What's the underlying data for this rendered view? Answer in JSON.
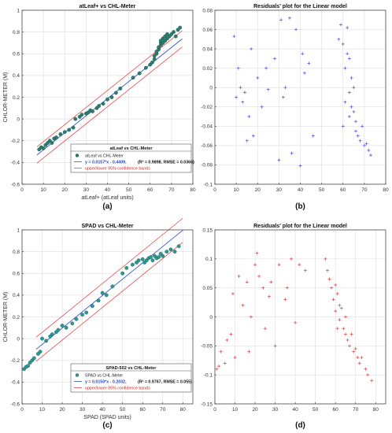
{
  "panels": [
    {
      "id": "a",
      "caption": "(a)",
      "chart_data": {
        "type": "scatter",
        "title": "atLeaf+ vs CHL-Meter",
        "xlabel": "atLeaf+ (atLeaf units)",
        "ylabel": "CHLOR-METER (M)",
        "xlim": [
          0,
          80
        ],
        "ylim": [
          -0.6,
          1.0
        ],
        "xticks": [
          0,
          10,
          20,
          30,
          40,
          50,
          60,
          70,
          80
        ],
        "yticks": [
          -0.6,
          -0.4,
          -0.2,
          0,
          0.2,
          0.4,
          0.6,
          0.8,
          1.0
        ],
        "ytick_labels": [
          "-0.6",
          "-0.4",
          "-0.2",
          "0",
          "0.2",
          "0.4",
          "0.6",
          "0.8",
          "1"
        ],
        "grid": true,
        "fit": {
          "slope": 0.0157,
          "intercept": -0.4409,
          "band": 0.075
        },
        "series": [
          {
            "name": "atLeaf vs CHL-Meter",
            "marker": "filled-circle",
            "color": "#2a7c6f",
            "x": [
              8,
              9,
              10,
              11,
              12,
              13,
              14,
              15,
              16,
              18,
              20,
              22,
              24,
              25,
              27,
              28,
              30,
              31,
              32,
              33,
              35,
              36,
              38,
              40,
              42,
              44,
              46,
              52,
              55,
              58,
              60,
              61,
              62,
              62,
              63,
              63,
              64,
              64,
              65,
              65,
              65,
              66,
              66,
              67,
              67,
              68,
              68,
              69,
              70,
              71,
              72,
              73,
              74
            ],
            "y": [
              -0.28,
              -0.26,
              -0.27,
              -0.24,
              -0.22,
              -0.2,
              -0.22,
              -0.18,
              -0.17,
              -0.14,
              -0.12,
              -0.1,
              -0.08,
              0.0,
              0.02,
              0.04,
              0.05,
              0.06,
              0.08,
              0.07,
              0.1,
              0.12,
              0.14,
              0.18,
              0.2,
              0.24,
              0.28,
              0.38,
              0.42,
              0.47,
              0.5,
              0.52,
              0.55,
              0.58,
              0.6,
              0.62,
              0.64,
              0.66,
              0.68,
              0.7,
              0.72,
              0.7,
              0.74,
              0.72,
              0.76,
              0.74,
              0.78,
              0.76,
              0.78,
              0.8,
              0.76,
              0.82,
              0.84
            ]
          }
        ],
        "legend": {
          "title": "atLeaf vs CHL-Meter",
          "series_label": "atLeaf vs CHL-Meter",
          "equation": "y = 0.0157*x - 0.4409,",
          "stats": "(R² = 0.9898, RMSE = 0.0366)",
          "band_label": "upper/lower 95% confidence bands",
          "placement": "bottom-right"
        }
      }
    },
    {
      "id": "b",
      "caption": "(b)",
      "chart_data": {
        "type": "scatter",
        "title": "Residuals' plot for the Linear model",
        "xlabel": "",
        "ylabel": "",
        "xlim": [
          0,
          80
        ],
        "ylim": [
          -0.1,
          0.08
        ],
        "xticks": [
          0,
          10,
          20,
          30,
          40,
          50,
          60,
          70,
          80
        ],
        "yticks": [
          -0.1,
          -0.08,
          -0.06,
          -0.04,
          -0.02,
          0,
          0.02,
          0.04,
          0.06,
          0.08
        ],
        "ytick_labels": [
          "-0.1",
          "-0.08",
          "-0.06",
          "-0.04",
          "-0.02",
          "0",
          "0.02",
          "0.04",
          "0.06",
          "0.08"
        ],
        "grid": true,
        "series": [
          {
            "name": "",
            "marker": "plus",
            "color": "#4a4ae6",
            "x": [
              9,
              10,
              11,
              12,
              13,
              14,
              15,
              16,
              17,
              18,
              20,
              22,
              24,
              25,
              28,
              30,
              31,
              32,
              33,
              35,
              36,
              38,
              40,
              41,
              42,
              44,
              46,
              58,
              59,
              60,
              60,
              61,
              61,
              62,
              62,
              63,
              63,
              63,
              64,
              64,
              65,
              65,
              66,
              66,
              67,
              68,
              69,
              70,
              71,
              72,
              73
            ],
            "y": [
              0.053,
              -0.01,
              0.02,
              0.0,
              -0.015,
              -0.005,
              -0.055,
              -0.03,
              0.04,
              -0.05,
              0.01,
              -0.02,
              0.02,
              -0.002,
              0.03,
              -0.075,
              0.07,
              -0.01,
              0.0,
              0.072,
              -0.068,
              0.06,
              -0.081,
              0.035,
              0.015,
              0.025,
              -0.05,
              0.05,
              0.065,
              0.045,
              -0.04,
              0.02,
              -0.015,
              0.062,
              0.035,
              0.03,
              -0.005,
              -0.03,
              0.01,
              -0.02,
              0.0,
              -0.025,
              -0.035,
              -0.045,
              -0.05,
              -0.055,
              -0.04,
              -0.06,
              -0.058,
              -0.065,
              -0.07
            ]
          }
        ]
      }
    },
    {
      "id": "c",
      "caption": "(c)",
      "chart_data": {
        "type": "scatter",
        "title": "SPAD vs CHL-Meter",
        "xlabel": "SPAD (SPAD units)",
        "ylabel": "CHLOR-METER (M)",
        "xlim": [
          0,
          85
        ],
        "ylim": [
          -0.6,
          1.0
        ],
        "xticks": [
          0,
          10,
          20,
          30,
          40,
          50,
          60,
          70,
          80
        ],
        "yticks": [
          -0.6,
          -0.4,
          -0.2,
          0,
          0.2,
          0.4,
          0.6,
          0.8,
          1.0
        ],
        "ytick_labels": [
          "-0.6",
          "-0.4",
          "-0.2",
          "0",
          "0.2",
          "0.4",
          "0.6",
          "0.8",
          "1"
        ],
        "grid": true,
        "fit": {
          "slope": 0.015,
          "intercept": -0.2032,
          "band": 0.11
        },
        "series": [
          {
            "name": "SPAD vs CHL-Meter",
            "marker": "filled-circle",
            "color": "#2a9a96",
            "x": [
              1,
              2,
              3,
              4,
              5,
              6,
              8,
              9,
              10,
              12,
              14,
              15,
              17,
              18,
              20,
              22,
              25,
              27,
              30,
              32,
              35,
              38,
              40,
              42,
              45,
              50,
              52,
              55,
              57,
              58,
              60,
              61,
              62,
              63,
              64,
              65,
              66,
              67,
              68,
              69,
              70,
              72,
              74,
              76,
              78
            ],
            "y": [
              -0.28,
              -0.26,
              -0.25,
              -0.22,
              -0.2,
              -0.18,
              -0.14,
              -0.12,
              0.0,
              -0.02,
              0.02,
              0.04,
              0.06,
              0.08,
              0.12,
              0.1,
              0.14,
              0.18,
              0.22,
              0.24,
              0.3,
              0.35,
              0.42,
              0.4,
              0.48,
              0.6,
              0.65,
              0.68,
              0.7,
              0.72,
              0.73,
              0.7,
              0.72,
              0.74,
              0.75,
              0.72,
              0.76,
              0.74,
              0.75,
              0.78,
              0.76,
              0.8,
              0.82,
              0.8,
              0.85
            ]
          }
        ],
        "legend": {
          "title": "SPAD-502 vs CHL-Meter",
          "series_label": "SPAD vs CHL-Meter",
          "equation": "y = 0.0150*x - 0.2032,",
          "stats": "(R² = 0.9767, RMSE = 0.055)",
          "band_label": "upper/lower 95% confidence bands",
          "placement": "bottom-right"
        }
      }
    },
    {
      "id": "d",
      "caption": "(d)",
      "chart_data": {
        "type": "scatter",
        "title": "Residuals' plot for the Linear model",
        "xlabel": "",
        "ylabel": "",
        "xlim": [
          0,
          85
        ],
        "ylim": [
          -0.15,
          0.15
        ],
        "xticks": [
          0,
          10,
          20,
          30,
          40,
          50,
          60,
          70,
          80
        ],
        "yticks": [
          -0.15,
          -0.1,
          -0.05,
          0,
          0.05,
          0.1,
          0.15
        ],
        "ytick_labels": [
          "-0.15",
          "-0.1",
          "-0.05",
          "0",
          "0.05",
          "0.1",
          "0.15"
        ],
        "grid": true,
        "series": [
          {
            "name": "",
            "marker": "plus",
            "color": "#e23a3a",
            "x": [
              1,
              2,
              3,
              5,
              6,
              8,
              9,
              10,
              12,
              14,
              16,
              17,
              18,
              20,
              21,
              22,
              24,
              25,
              27,
              28,
              30,
              32,
              35,
              36,
              38,
              40,
              42,
              45,
              55,
              56,
              57,
              58,
              59,
              60,
              60,
              61,
              61,
              62,
              62,
              63,
              64,
              65,
              65,
              66,
              67,
              68,
              69,
              70,
              71,
              72,
              73,
              75,
              76,
              78
            ],
            "y": [
              -0.09,
              -0.085,
              -0.06,
              -0.08,
              -0.04,
              -0.03,
              0.04,
              -0.07,
              0.07,
              0.02,
              0.06,
              -0.06,
              0.0,
              0.09,
              0.11,
              0.07,
              0.05,
              -0.02,
              0.035,
              0.06,
              -0.05,
              0.09,
              0.03,
              0.05,
              0.1,
              -0.01,
              0.09,
              0.08,
              0.1,
              0.08,
              0.065,
              0.05,
              0.03,
              0.055,
              0.01,
              0.04,
              -0.02,
              0.02,
              -0.005,
              0.015,
              -0.02,
              -0.03,
              0.0,
              -0.04,
              -0.05,
              -0.03,
              -0.06,
              -0.055,
              -0.07,
              -0.08,
              -0.07,
              -0.09,
              -0.1,
              -0.11
            ]
          }
        ]
      }
    }
  ]
}
